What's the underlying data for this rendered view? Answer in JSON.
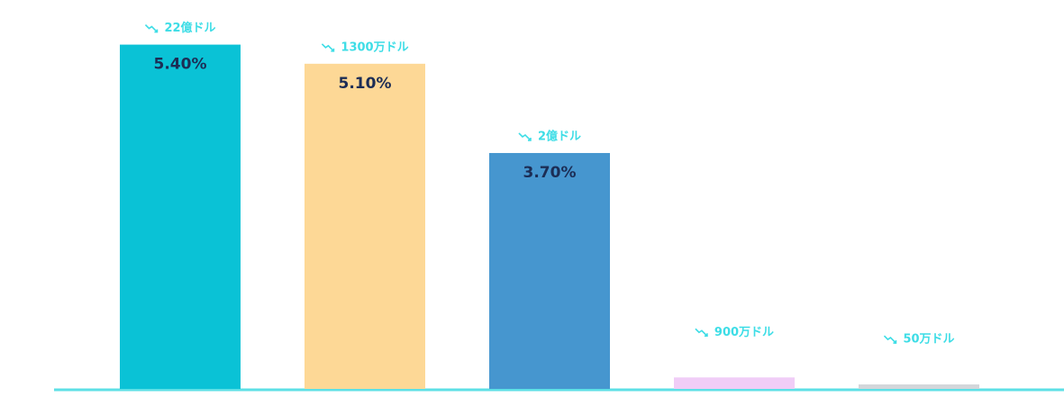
{
  "chart_data": {
    "type": "bar",
    "values": [
      5.4,
      5.1,
      3.7,
      0.18,
      0.07
    ],
    "value_labels": [
      "5.40%",
      "5.10%",
      "3.70%",
      null,
      null
    ],
    "annotations": [
      "22億ドル",
      "1300万ドル",
      "2億ドル",
      "900万ドル",
      "50万ドル"
    ],
    "colors": [
      "#0ac2d6",
      "#fdd896",
      "#4696cf",
      "#f0cdf7",
      "#d3d6da"
    ],
    "ylim": [
      0,
      6.1
    ]
  }
}
